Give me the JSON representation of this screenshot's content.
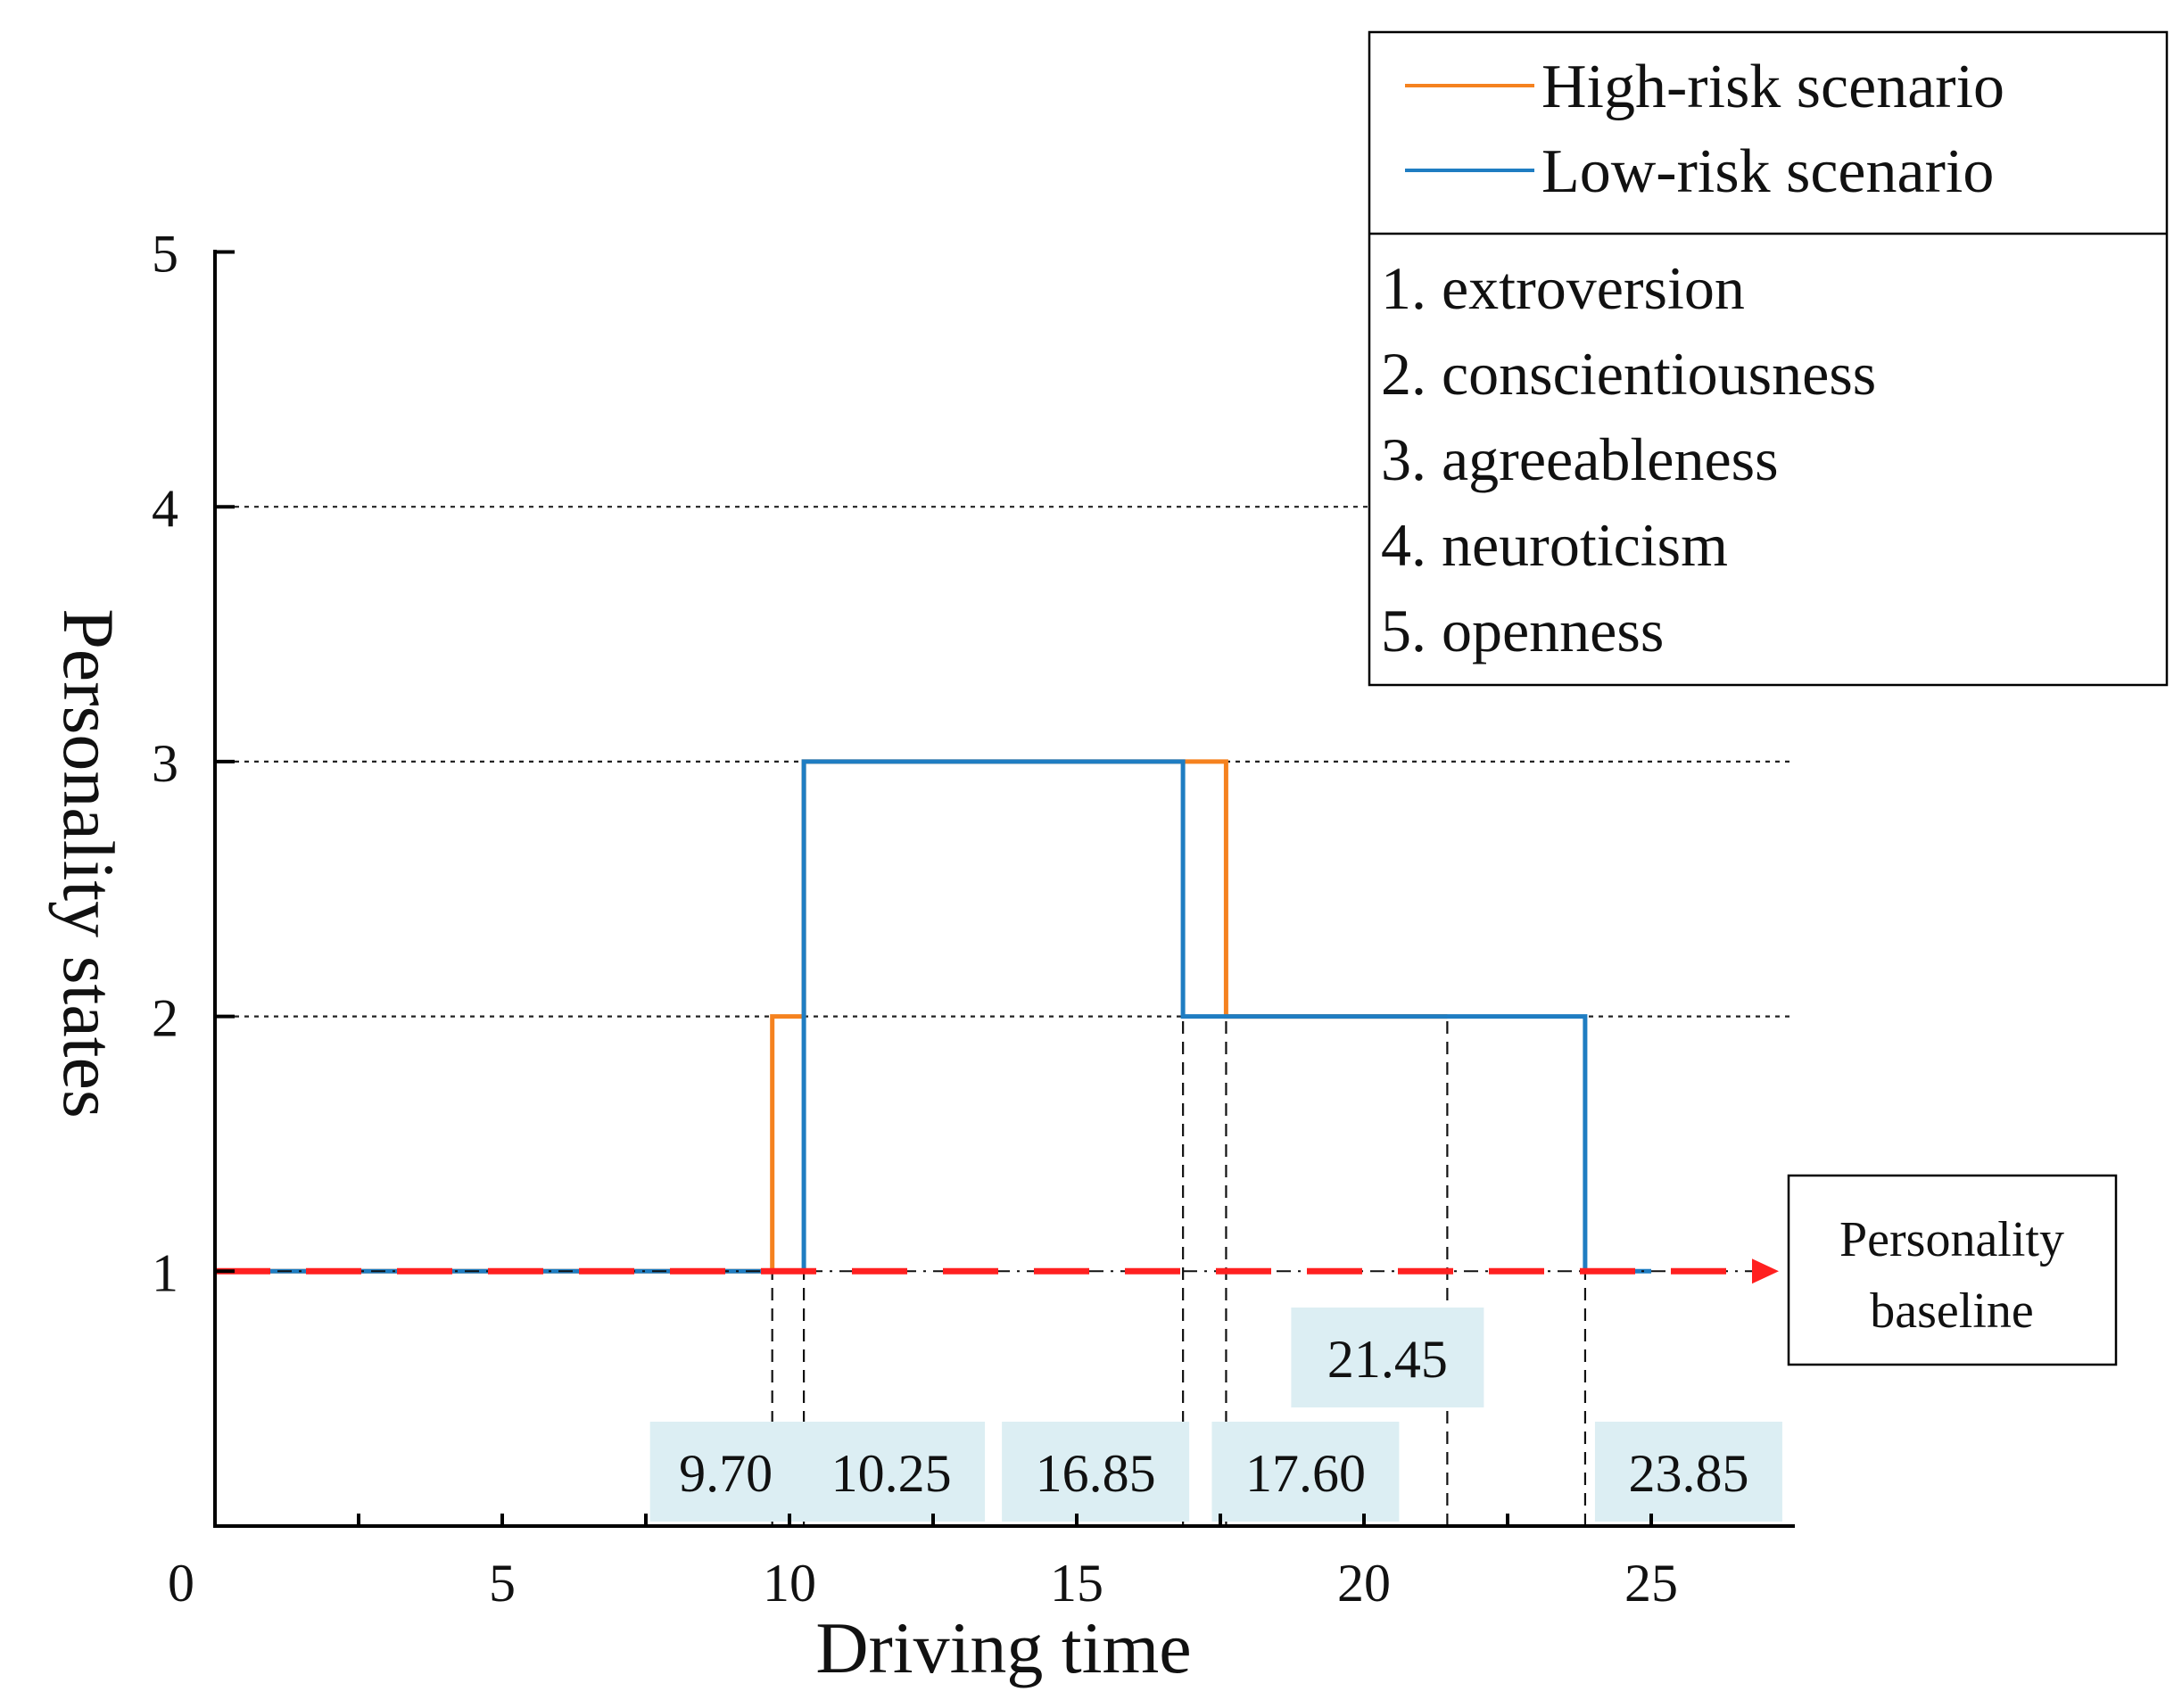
{
  "chart_data": {
    "type": "line",
    "step": true,
    "xlabel": "Driving time",
    "ylabel": "Personality states",
    "xlim": [
      0,
      27.5
    ],
    "ylim": [
      0,
      5
    ],
    "x_ticks": [
      0,
      5,
      10,
      15,
      20,
      25
    ],
    "x_minor_ticks": [
      2.5,
      7.5,
      12.5,
      17.5,
      22.5
    ],
    "y_ticks": [
      1,
      2,
      3,
      4,
      5
    ],
    "y_gridlines": [
      2,
      3,
      4
    ],
    "grid": "horizontal dotted",
    "series": [
      {
        "name": "High-risk scenario",
        "color": "#F5821F",
        "points": [
          [
            0,
            1
          ],
          [
            9.7,
            1
          ],
          [
            9.7,
            2
          ],
          [
            10.25,
            2
          ],
          [
            10.25,
            3
          ],
          [
            17.6,
            3
          ],
          [
            17.6,
            2
          ],
          [
            21.45,
            2
          ]
        ]
      },
      {
        "name": "Low-risk scenario",
        "color": "#1F7DC2",
        "points": [
          [
            0,
            1
          ],
          [
            10.25,
            1
          ],
          [
            10.25,
            2
          ],
          [
            10.25,
            3
          ],
          [
            16.85,
            3
          ],
          [
            16.85,
            2
          ],
          [
            23.85,
            2
          ],
          [
            23.85,
            1
          ],
          [
            25,
            1
          ]
        ]
      }
    ],
    "baseline": {
      "value": 1,
      "color": "#FF2020",
      "label_line1": "Personality",
      "label_line2": "baseline"
    },
    "marker_lines": [
      9.7,
      10.25,
      16.85,
      17.6,
      21.45,
      23.85
    ],
    "time_labels": [
      {
        "x": 9.7,
        "text": "9.70",
        "row": "low"
      },
      {
        "x": 10.25,
        "text": "10.25",
        "row": "low"
      },
      {
        "x": 16.85,
        "text": "16.85",
        "row": "low"
      },
      {
        "x": 17.6,
        "text": "17.60",
        "row": "low"
      },
      {
        "x": 21.45,
        "text": "21.45",
        "row": "high"
      },
      {
        "x": 23.85,
        "text": "23.85",
        "row": "low"
      }
    ],
    "label_box_color": "#DCEEF3",
    "legend": {
      "placement": "top-right",
      "entries": [
        {
          "text": "High-risk scenario",
          "color": "#F5821F"
        },
        {
          "text": "Low-risk scenario",
          "color": "#1F7DC2"
        }
      ],
      "states": [
        "1. extroversion",
        "2. conscientiousness",
        "3. agreeableness",
        "4. neuroticism",
        "5. openness"
      ]
    }
  }
}
